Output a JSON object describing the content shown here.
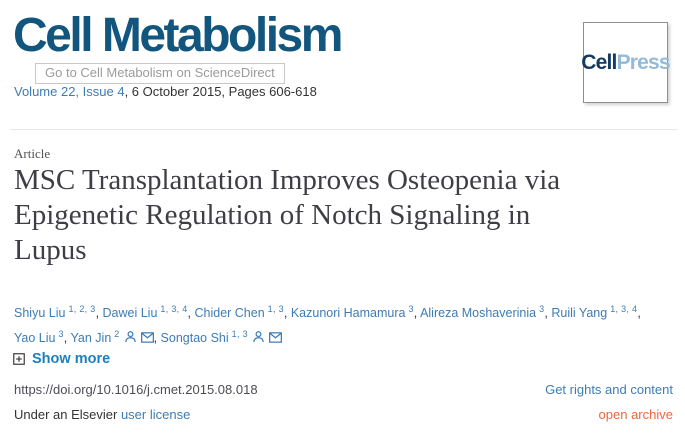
{
  "journal": {
    "name": "Cell Metabolism",
    "tooltip": "Go to Cell Metabolism on ScienceDirect",
    "volume_issue_link": "Volume 22, Issue 4",
    "date_pages": ", 6 October 2015, Pages 606-618",
    "publisher_logo": {
      "part1": "Cell",
      "part2": "Press"
    }
  },
  "article": {
    "type_label": "Article",
    "title": "MSC Transplantation Improves Osteopenia via Epigenetic Regulation of Notch Signaling in Lupus",
    "title_lines": [
      "MSC Transplantation Improves Osteopenia via",
      "Epigenetic Regulation of Notch Signaling in",
      "Lupus"
    ],
    "authors": [
      {
        "name": "Shiyu Liu",
        "sup": "1, 2, 3",
        "person_icon": false,
        "email_icon": false,
        "break_after": false
      },
      {
        "name": "Dawei Liu",
        "sup": "1, 3, 4",
        "person_icon": false,
        "email_icon": false,
        "break_after": false
      },
      {
        "name": "Chider Chen",
        "sup": "1, 3",
        "person_icon": false,
        "email_icon": false,
        "break_after": false
      },
      {
        "name": "Kazunori Hamamura",
        "sup": "3",
        "person_icon": false,
        "email_icon": false,
        "break_after": false
      },
      {
        "name": "Alireza Moshaverinia",
        "sup": "3",
        "person_icon": false,
        "email_icon": false,
        "break_after": false
      },
      {
        "name": "Ruili Yang",
        "sup": "1, 3, 4",
        "person_icon": false,
        "email_icon": false,
        "break_after": true
      },
      {
        "name": "Yao Liu",
        "sup": "3",
        "person_icon": false,
        "email_icon": false,
        "break_after": false
      },
      {
        "name": "Yan Jin",
        "sup": "2",
        "person_icon": true,
        "email_icon": true,
        "break_after": false
      },
      {
        "name": "Songtao Shi",
        "sup": "1, 3",
        "person_icon": true,
        "email_icon": true,
        "break_after": false
      }
    ],
    "show_more_label": "Show more",
    "doi": "https://doi.org/10.1016/j.cmet.2015.08.018",
    "rights_link_label": "Get rights and content",
    "license_prefix": "Under an Elsevier ",
    "license_link_label": "user license",
    "open_archive_label": "open archive"
  },
  "icons": {
    "show_more": "plus-box-icon",
    "author_profile": "person-icon",
    "author_email": "envelope-icon"
  },
  "colors": {
    "logo_blue": "#12567e",
    "link_blue": "#3e7cb4",
    "action_blue": "#1b80bf",
    "orange": "#e8693c",
    "text_dark": "#333333",
    "doi_color": "#4c4d56",
    "tooltip_gray": "#9b9b9b",
    "cellpress_dark": "#123a63",
    "cellpress_light": "#92bada"
  }
}
